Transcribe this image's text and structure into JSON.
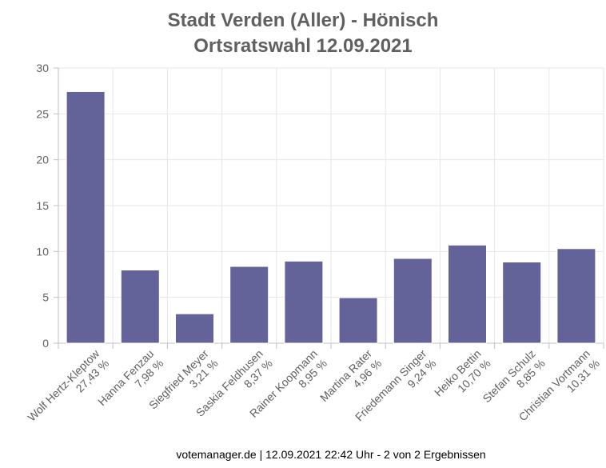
{
  "chart_data": {
    "type": "bar",
    "title": "Stadt Verden (Aller) - Hönisch",
    "subtitle": "Ortsratswahl 12.09.2021",
    "categories": [
      "Wolf Hertz-Kleptow",
      "Hanna Fenzau",
      "Siegfried Meyer",
      "Saskia Feldhusen",
      "Rainer Koopmann",
      "Martina Rater",
      "Friedemann Singer",
      "Heiko Bettin",
      "Stefan Schulz",
      "Christian Vortmann"
    ],
    "value_labels": [
      "27,43 %",
      "7,98 %",
      "3,21 %",
      "8,37 %",
      "8,95 %",
      "4,96 %",
      "9,24 %",
      "10,70 %",
      "8,85 %",
      "10,31 %"
    ],
    "values": [
      27.43,
      7.98,
      3.21,
      8.37,
      8.95,
      4.96,
      9.24,
      10.7,
      8.85,
      10.31
    ],
    "yticks": [
      "0",
      "5",
      "10",
      "15",
      "20",
      "25",
      "30"
    ],
    "ylim": [
      0,
      30
    ],
    "grid": true,
    "bar_color": "#63639a"
  },
  "footer": "votemanager.de | 12.09.2021 22:42 Uhr - 2 von 2 Ergebnissen"
}
